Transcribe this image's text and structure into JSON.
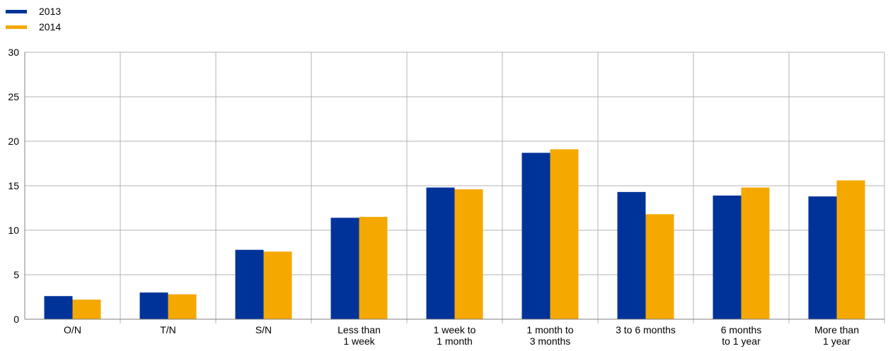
{
  "chart_data": {
    "type": "bar",
    "categories": [
      [
        "O/N"
      ],
      [
        "T/N"
      ],
      [
        "S/N"
      ],
      [
        "Less than",
        "1 week"
      ],
      [
        "1 week to",
        "1 month"
      ],
      [
        "1 month to",
        "3 months"
      ],
      [
        "3 to 6 months"
      ],
      [
        "6 months",
        "to 1 year"
      ],
      [
        "More than",
        "1 year"
      ]
    ],
    "series": [
      {
        "name": "2013",
        "color": "#003399",
        "values": [
          2.6,
          3.0,
          7.8,
          11.4,
          14.8,
          18.7,
          14.3,
          13.9,
          13.8
        ]
      },
      {
        "name": "2014",
        "color": "#F5A800",
        "values": [
          2.2,
          2.8,
          7.6,
          11.5,
          14.6,
          19.1,
          11.8,
          14.8,
          15.6
        ]
      }
    ],
    "ylim": [
      0,
      30
    ],
    "yticks": [
      0,
      5,
      10,
      15,
      20,
      25,
      30
    ],
    "grid": true,
    "legend_position": "top-left"
  }
}
